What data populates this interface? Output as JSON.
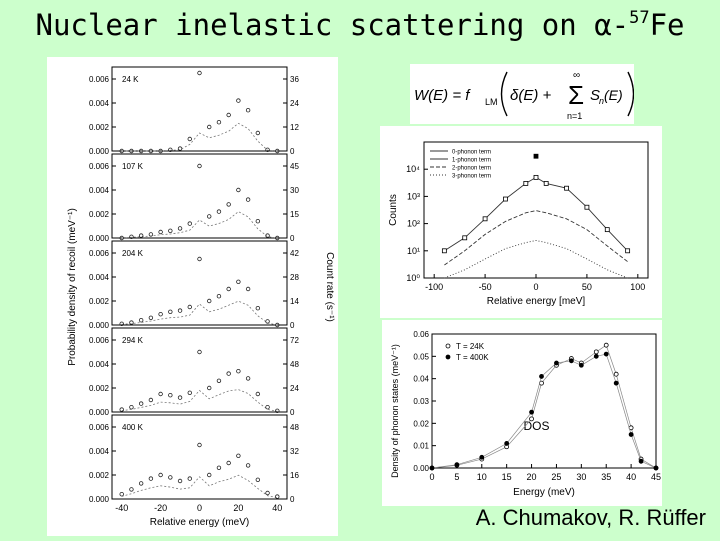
{
  "slide": {
    "title_prefix": "Nuclear inelastic scattering on ",
    "title_alpha": "α-",
    "title_mass": "57",
    "title_element": "Fe",
    "credit": "A. Chumakov, R. Rüffer"
  },
  "formula": {
    "lhs": "W(E) = f",
    "lm_sub": "LM",
    "rhs_delta": "δ(E) +",
    "sum_top": "∞",
    "sum_bottom": "n=1",
    "term": "S",
    "term_sub": "n",
    "term_arg": "(E)"
  },
  "chart_data": [
    {
      "type": "scatter",
      "title": "",
      "xlabel": "Relative energy (meV)",
      "ylabel": "Probability density of recoil (meV⁻¹)",
      "ylabel_right": "Count rate (s⁻¹)",
      "xlim": [
        -45,
        45
      ],
      "x_ticks": [
        "-40",
        "-20",
        "0",
        "20",
        "40"
      ],
      "y_ticks_left": [
        "0.006",
        "0.004",
        "0.002",
        "0.000"
      ],
      "panels": [
        {
          "label": "24 K",
          "right_ticks": [
            "36",
            "24",
            "12",
            "0"
          ]
        },
        {
          "label": "107 K",
          "right_ticks": [
            "45",
            "30",
            "15",
            "0"
          ]
        },
        {
          "label": "204 K",
          "right_ticks": [
            "42",
            "28",
            "14",
            "0"
          ]
        },
        {
          "label": "294 K",
          "right_ticks": [
            "72",
            "48",
            "24",
            "0"
          ]
        },
        {
          "label": "400 K",
          "right_ticks": [
            "48",
            "32",
            "16",
            "0"
          ]
        }
      ],
      "x": [
        -40,
        -35,
        -30,
        -25,
        -20,
        -15,
        -10,
        -5,
        0,
        5,
        10,
        15,
        20,
        25,
        30,
        35,
        40
      ],
      "series": [
        {
          "values": [
            0.0,
            0.0,
            0.0,
            0.0,
            0.0,
            0.0001,
            0.0002,
            0.001,
            0.0065,
            0.002,
            0.0024,
            0.003,
            0.0042,
            0.0034,
            0.0015,
            0.0001,
            0.0
          ]
        },
        {
          "values": [
            0.0,
            0.0001,
            0.0002,
            0.0003,
            0.0005,
            0.0006,
            0.0008,
            0.0012,
            0.006,
            0.0018,
            0.0022,
            0.0028,
            0.004,
            0.0032,
            0.0014,
            0.0002,
            0.0
          ]
        },
        {
          "values": [
            0.0001,
            0.0002,
            0.0004,
            0.0006,
            0.0009,
            0.0011,
            0.0012,
            0.0015,
            0.0055,
            0.002,
            0.0024,
            0.003,
            0.0036,
            0.003,
            0.0014,
            0.0003,
            0.0
          ]
        },
        {
          "values": [
            0.0002,
            0.0004,
            0.0007,
            0.001,
            0.0015,
            0.0014,
            0.0012,
            0.0016,
            0.005,
            0.002,
            0.0026,
            0.0032,
            0.0034,
            0.0028,
            0.0015,
            0.0004,
            0.0001
          ]
        },
        {
          "values": [
            0.0004,
            0.0008,
            0.0013,
            0.0017,
            0.002,
            0.0018,
            0.0015,
            0.0017,
            0.0045,
            0.002,
            0.0026,
            0.003,
            0.0036,
            0.0028,
            0.0016,
            0.0005,
            0.0002
          ]
        }
      ]
    },
    {
      "type": "line",
      "title": "",
      "xlabel": "Relative energy [meV]",
      "ylabel": "Counts",
      "y_scale": "log",
      "xlim": [
        -110,
        110
      ],
      "ylim": [
        1,
        100000
      ],
      "x_ticks": [
        "-100",
        "-50",
        "0",
        "50",
        "100"
      ],
      "y_ticks": [
        "10⁰",
        "10¹",
        "10²",
        "10³",
        "10⁴"
      ],
      "legend_position": "top-left",
      "x": [
        -90,
        -70,
        -50,
        -30,
        -10,
        0,
        10,
        30,
        50,
        70,
        90
      ],
      "series": [
        {
          "name": "0-phonon term",
          "values": [
            null,
            null,
            null,
            null,
            null,
            30000,
            null,
            null,
            null,
            null,
            null
          ]
        },
        {
          "name": "1-phonon term",
          "values": [
            10,
            30,
            150,
            800,
            3000,
            5000,
            3000,
            2000,
            400,
            60,
            10
          ]
        },
        {
          "name": "2-phonon term",
          "values": [
            3,
            10,
            40,
            120,
            250,
            300,
            250,
            150,
            60,
            15,
            4
          ]
        },
        {
          "name": "3-phonon term",
          "values": [
            1,
            2,
            5,
            12,
            20,
            24,
            20,
            12,
            5,
            2,
            1
          ]
        }
      ]
    },
    {
      "type": "scatter",
      "title": "",
      "xlabel": "Energy (meV)",
      "ylabel": "Density of phonon states (meV⁻¹)",
      "xlim": [
        0,
        45
      ],
      "ylim": [
        0,
        0.06
      ],
      "x_ticks": [
        "0",
        "5",
        "10",
        "15",
        "20",
        "25",
        "30",
        "35",
        "40",
        "45"
      ],
      "y_ticks": [
        "0.06",
        "0.05",
        "0.04",
        "0.03",
        "0.02",
        "0.01",
        "0.00"
      ],
      "annotation": "DOS",
      "legend_position": "top-left",
      "x": [
        0,
        5,
        10,
        15,
        20,
        22,
        25,
        28,
        30,
        33,
        35,
        37,
        40,
        42,
        45
      ],
      "series": [
        {
          "name": "T = 24K",
          "values": [
            0.0,
            0.0012,
            0.004,
            0.0095,
            0.022,
            0.038,
            0.046,
            0.049,
            0.047,
            0.052,
            0.055,
            0.042,
            0.018,
            0.004,
            0.0
          ]
        },
        {
          "name": "T = 400K",
          "values": [
            0.0,
            0.0015,
            0.0048,
            0.011,
            0.025,
            0.041,
            0.047,
            0.048,
            0.046,
            0.05,
            0.051,
            0.038,
            0.015,
            0.003,
            0.0
          ]
        }
      ]
    }
  ]
}
